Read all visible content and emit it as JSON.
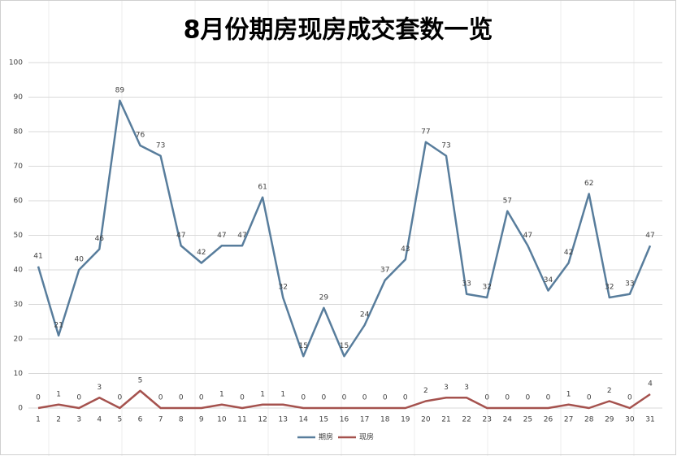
{
  "chart_data": {
    "type": "line",
    "title": "8月份期房现房成交套数一览",
    "categories": [
      "1",
      "2",
      "3",
      "4",
      "5",
      "6",
      "7",
      "8",
      "9",
      "10",
      "11",
      "12",
      "13",
      "14",
      "15",
      "16",
      "17",
      "18",
      "19",
      "20",
      "21",
      "22",
      "23",
      "24",
      "25",
      "26",
      "27",
      "28",
      "29",
      "30",
      "31"
    ],
    "series": [
      {
        "name": "期房",
        "color": "#587d9c",
        "values": [
          41,
          21,
          40,
          46,
          89,
          76,
          73,
          47,
          42,
          47,
          47,
          61,
          32,
          15,
          29,
          15,
          24,
          37,
          43,
          77,
          73,
          33,
          32,
          57,
          47,
          34,
          42,
          62,
          32,
          33,
          47
        ]
      },
      {
        "name": "现房",
        "color": "#a5524e",
        "values": [
          0,
          1,
          0,
          3,
          0,
          5,
          0,
          0,
          0,
          1,
          0,
          1,
          1,
          0,
          0,
          0,
          0,
          0,
          0,
          2,
          3,
          3,
          0,
          0,
          0,
          0,
          1,
          0,
          2,
          0,
          4
        ]
      }
    ],
    "ylim": [
      0,
      100
    ],
    "yticks": [
      0,
      10,
      20,
      30,
      40,
      50,
      60,
      70,
      80,
      90,
      100
    ],
    "grid": true,
    "legend": "bottom"
  }
}
